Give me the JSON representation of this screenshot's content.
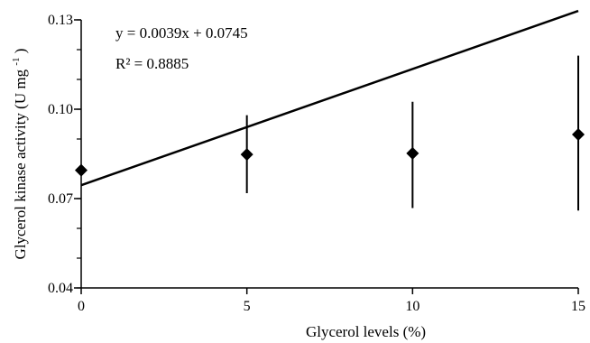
{
  "chart_data": {
    "type": "scatter",
    "title": "",
    "xlabel": "Glycerol levels (%)",
    "ylabel": "Glycerol kinase activity (U mg",
    "ylabel_superscript": "-1",
    "ylabel_suffix": ")",
    "xlim": [
      0,
      15
    ],
    "ylim": [
      0.04,
      0.13
    ],
    "x_ticks": [
      0,
      5,
      10,
      15
    ],
    "x_tick_labels": [
      "0",
      "5",
      "10",
      "15"
    ],
    "y_ticks": [
      0.04,
      0.07,
      0.1,
      0.13
    ],
    "y_tick_labels": [
      "0.04",
      "0.07",
      "0.10",
      "0.13"
    ],
    "grid": false,
    "legend": "none",
    "marker": "diamond",
    "series": [
      {
        "x": [
          0,
          5,
          10,
          15
        ],
        "y": [
          0.0795,
          0.0848,
          0.0852,
          0.0915
        ],
        "err_low": [
          0.0795,
          0.0718,
          0.0668,
          0.066
        ],
        "err_high": [
          0.0795,
          0.098,
          0.1025,
          0.118
        ]
      }
    ],
    "trendline": {
      "type": "linear",
      "slope": 0.0039,
      "intercept": 0.0745
    },
    "annotations": [
      "y = 0.0039x + 0.0745",
      "R² = 0.8885"
    ]
  }
}
